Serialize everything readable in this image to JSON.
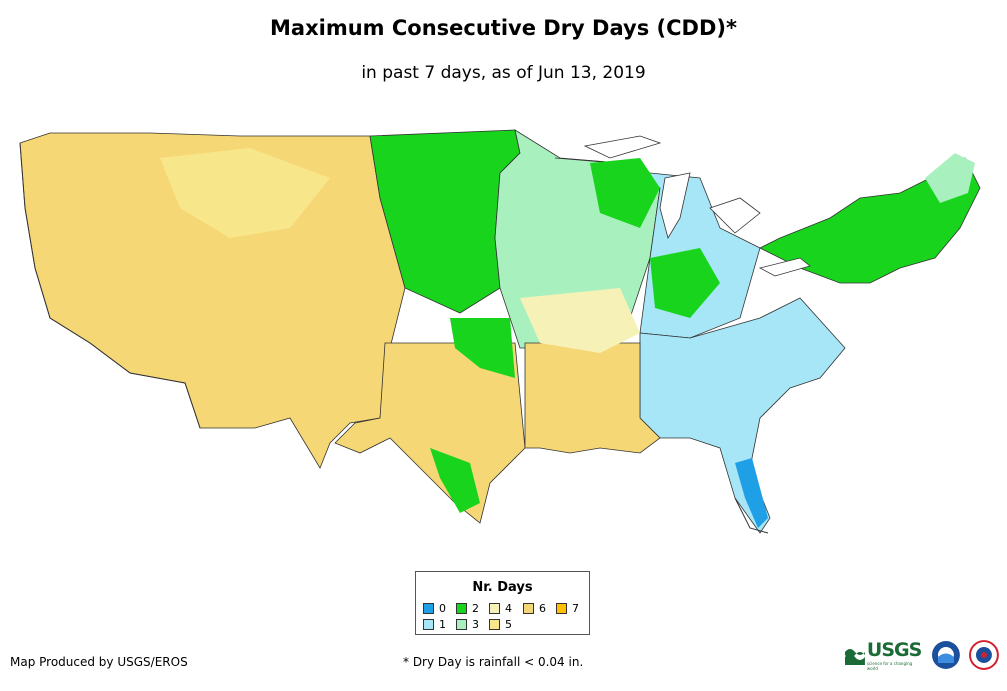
{
  "header": {
    "title": "Maximum Consecutive Dry Days (CDD)*",
    "subtitle": "in past 7 days, as of Jun 13, 2019"
  },
  "legend": {
    "title": "Nr. Days",
    "items": [
      {
        "label": "0",
        "color": "#1fa0e6"
      },
      {
        "label": "1",
        "color": "#a6e6f7"
      },
      {
        "label": "2",
        "color": "#18d41c"
      },
      {
        "label": "3",
        "color": "#a9f0bf"
      },
      {
        "label": "4",
        "color": "#f6f2b7"
      },
      {
        "label": "5",
        "color": "#f8e68a"
      },
      {
        "label": "6",
        "color": "#f5d676"
      },
      {
        "label": "7",
        "color": "#ffc000"
      }
    ]
  },
  "footer": {
    "credit": "Map Produced by USGS/EROS",
    "note": "* Dry Day is rainfall < 0.04 in."
  },
  "logos": {
    "usgs_text": "USGS",
    "usgs_tagline": "science for a changing world",
    "noaa_icon": "noaa-logo-icon",
    "nws_icon": "nws-logo-icon"
  }
}
